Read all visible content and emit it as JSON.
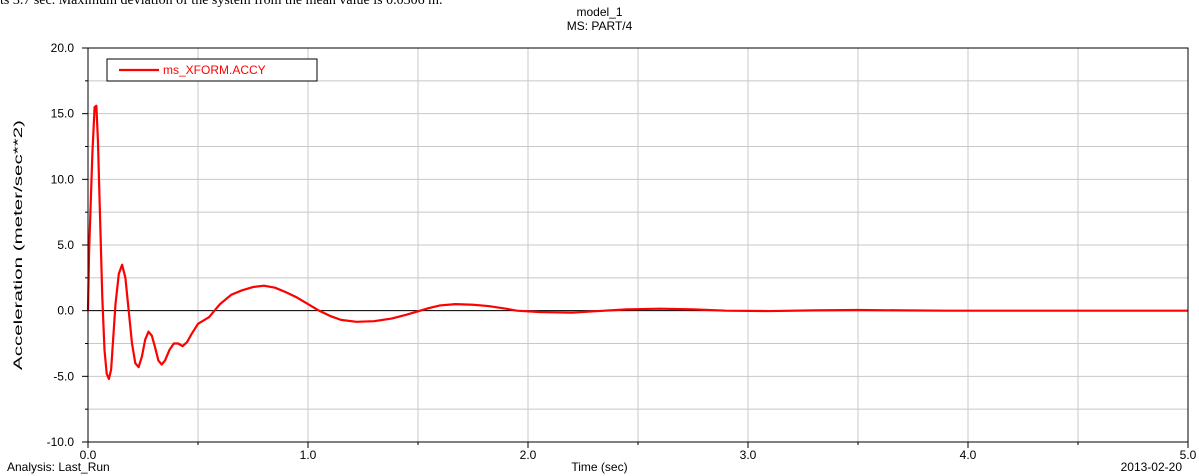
{
  "caption": "ts 3.7 sec. Maximum deviation of the system from the mean value is 0.0306 m.",
  "chart_data": {
    "type": "line",
    "title": "model_1",
    "subtitle": "MS: PART/4",
    "xlabel": "Time (sec)",
    "ylabel": "Acceleration (meter/sec**2)",
    "xlim": [
      0.0,
      5.0
    ],
    "ylim": [
      -10.0,
      20.0
    ],
    "x_ticks": [
      "0.0",
      "1.0",
      "2.0",
      "3.0",
      "4.0",
      "5.0"
    ],
    "y_ticks": [
      "20.0",
      "15.0",
      "10.0",
      "5.0",
      "0.0",
      "-5.0",
      "-10.0"
    ],
    "grid": true,
    "legend_position": "top-left",
    "series": [
      {
        "name": "ms_XFORM.ACCY",
        "color": "#ff0000",
        "points": [
          [
            0.0,
            0.0
          ],
          [
            0.005,
            4.5
          ],
          [
            0.012,
            8.0
          ],
          [
            0.02,
            12.0
          ],
          [
            0.03,
            15.5
          ],
          [
            0.038,
            15.6
          ],
          [
            0.045,
            13.0
          ],
          [
            0.055,
            7.0
          ],
          [
            0.065,
            1.0
          ],
          [
            0.075,
            -3.0
          ],
          [
            0.085,
            -4.8
          ],
          [
            0.095,
            -5.2
          ],
          [
            0.105,
            -4.5
          ],
          [
            0.115,
            -2.0
          ],
          [
            0.125,
            0.5
          ],
          [
            0.14,
            2.8
          ],
          [
            0.155,
            3.5
          ],
          [
            0.17,
            2.5
          ],
          [
            0.185,
            0.0
          ],
          [
            0.2,
            -2.5
          ],
          [
            0.215,
            -4.0
          ],
          [
            0.23,
            -4.3
          ],
          [
            0.245,
            -3.5
          ],
          [
            0.26,
            -2.2
          ],
          [
            0.275,
            -1.6
          ],
          [
            0.29,
            -1.9
          ],
          [
            0.305,
            -2.8
          ],
          [
            0.32,
            -3.8
          ],
          [
            0.335,
            -4.1
          ],
          [
            0.35,
            -3.8
          ],
          [
            0.37,
            -3.0
          ],
          [
            0.39,
            -2.5
          ],
          [
            0.41,
            -2.5
          ],
          [
            0.43,
            -2.7
          ],
          [
            0.45,
            -2.4
          ],
          [
            0.47,
            -1.8
          ],
          [
            0.5,
            -1.0
          ],
          [
            0.55,
            -0.5
          ],
          [
            0.6,
            0.5
          ],
          [
            0.65,
            1.2
          ],
          [
            0.7,
            1.55
          ],
          [
            0.75,
            1.8
          ],
          [
            0.8,
            1.9
          ],
          [
            0.85,
            1.75
          ],
          [
            0.9,
            1.4
          ],
          [
            0.95,
            1.0
          ],
          [
            1.0,
            0.5
          ],
          [
            1.05,
            0.0
          ],
          [
            1.1,
            -0.4
          ],
          [
            1.15,
            -0.7
          ],
          [
            1.22,
            -0.85
          ],
          [
            1.3,
            -0.8
          ],
          [
            1.38,
            -0.6
          ],
          [
            1.45,
            -0.3
          ],
          [
            1.5,
            -0.05
          ],
          [
            1.55,
            0.2
          ],
          [
            1.6,
            0.4
          ],
          [
            1.67,
            0.5
          ],
          [
            1.75,
            0.45
          ],
          [
            1.82,
            0.35
          ],
          [
            1.9,
            0.15
          ],
          [
            1.95,
            0.0
          ],
          [
            2.05,
            -0.1
          ],
          [
            2.2,
            -0.15
          ],
          [
            2.3,
            -0.05
          ],
          [
            2.45,
            0.1
          ],
          [
            2.6,
            0.15
          ],
          [
            2.75,
            0.1
          ],
          [
            2.9,
            0.0
          ],
          [
            3.1,
            -0.03
          ],
          [
            3.3,
            0.02
          ],
          [
            3.5,
            0.05
          ],
          [
            3.7,
            0.02
          ],
          [
            3.9,
            0.0
          ],
          [
            4.2,
            0.0
          ],
          [
            4.6,
            0.0
          ],
          [
            5.0,
            0.0
          ]
        ]
      }
    ]
  },
  "footer": {
    "analysis": "Analysis:  Last_Run",
    "date": "2013-02-20"
  }
}
